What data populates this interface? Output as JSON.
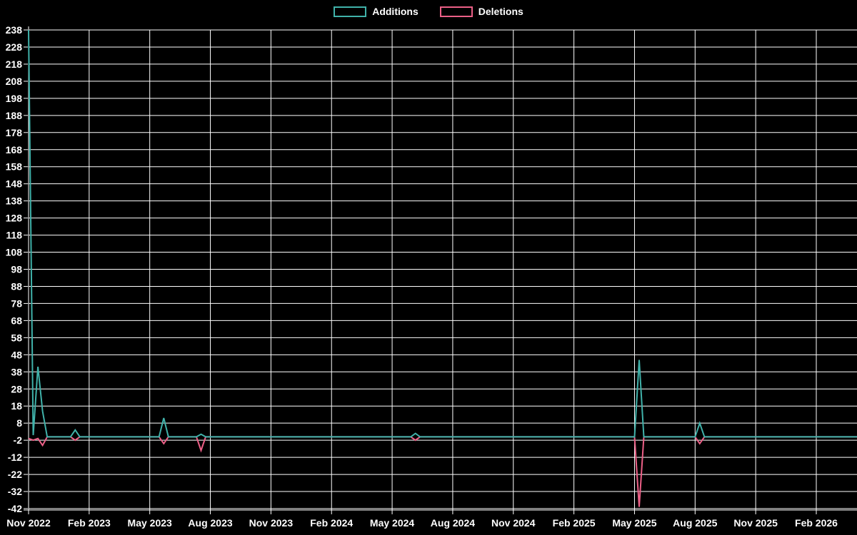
{
  "legend": {
    "items": [
      {
        "label": "Additions",
        "color": "#40b2aa"
      },
      {
        "label": "Deletions",
        "color": "#ec6087"
      }
    ]
  },
  "chart_data": {
    "type": "line",
    "title": "",
    "xlabel": "",
    "ylabel": "",
    "legend_position": "top-center",
    "grid": true,
    "background": "#000000",
    "grid_color": "#ffffff",
    "text_color": "#ffffff",
    "ylim": [
      -42,
      238
    ],
    "y_tick_step": 10,
    "y_tick_labels": [
      238,
      228,
      218,
      208,
      198,
      188,
      178,
      168,
      158,
      148,
      138,
      128,
      118,
      108,
      98,
      88,
      78,
      68,
      58,
      48,
      38,
      28,
      18,
      8,
      -2,
      -12,
      -22,
      -32,
      -42
    ],
    "x_tick_labels": [
      "Nov 2022",
      "Feb 2023",
      "May 2023",
      "Aug 2023",
      "Nov 2023",
      "Feb 2024",
      "May 2024",
      "Aug 2024",
      "Nov 2024",
      "Feb 2025",
      "May 2025",
      "Aug 2025",
      "Nov 2025",
      "Feb 2026"
    ],
    "x_unit": "weeks since Nov 2022",
    "weeks_per_tick": 13,
    "x_total_weeks": 178,
    "series": [
      {
        "name": "Additions",
        "color": "#40b2aa",
        "points": [
          [
            0,
            238
          ],
          [
            1,
            1
          ],
          [
            2,
            41
          ],
          [
            3,
            15
          ],
          [
            4,
            0
          ],
          [
            9,
            0
          ],
          [
            10,
            4
          ],
          [
            11,
            0
          ],
          [
            28,
            0
          ],
          [
            29,
            11
          ],
          [
            30,
            0
          ],
          [
            36,
            0
          ],
          [
            37,
            1.5
          ],
          [
            38,
            0
          ],
          [
            82,
            0
          ],
          [
            83,
            2
          ],
          [
            84,
            0
          ],
          [
            130,
            0
          ],
          [
            131,
            45
          ],
          [
            132,
            0
          ],
          [
            143,
            0
          ],
          [
            144,
            8
          ],
          [
            145,
            0
          ],
          [
            178,
            0
          ]
        ]
      },
      {
        "name": "Deletions",
        "color": "#ec6087",
        "points": [
          [
            0,
            -1
          ],
          [
            1,
            -2
          ],
          [
            2,
            -1
          ],
          [
            3,
            -5
          ],
          [
            4,
            0
          ],
          [
            9,
            0
          ],
          [
            10,
            -2
          ],
          [
            11,
            0
          ],
          [
            28,
            0
          ],
          [
            29,
            -4
          ],
          [
            30,
            0
          ],
          [
            36,
            0
          ],
          [
            37,
            -8
          ],
          [
            38,
            0
          ],
          [
            82,
            0
          ],
          [
            83,
            -2
          ],
          [
            84,
            0
          ],
          [
            130,
            0
          ],
          [
            131,
            -41
          ],
          [
            132,
            0
          ],
          [
            143,
            0
          ],
          [
            144,
            -4
          ],
          [
            145,
            0
          ],
          [
            178,
            0
          ]
        ]
      }
    ]
  }
}
